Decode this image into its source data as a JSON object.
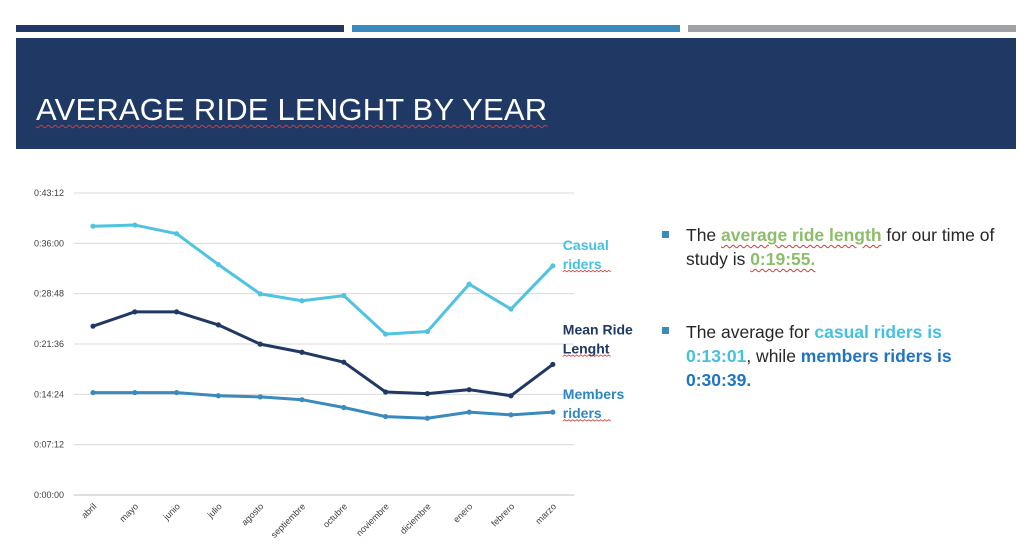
{
  "slide": {
    "title": "AVERAGE RIDE LENGHT BY YEAR",
    "accent_colors": {
      "dark_navy": "#1f3864",
      "blue": "#3a8bbd",
      "gray": "#a0a3a6"
    }
  },
  "bullets": [
    {
      "parts": [
        {
          "text": "The ",
          "style": "plain"
        },
        {
          "text": "average ride length",
          "style": "green"
        },
        {
          "text": " for our time of study is ",
          "style": "plain"
        },
        {
          "text": "0:19:55.",
          "style": "green"
        }
      ]
    },
    {
      "parts": [
        {
          "text": "The average for ",
          "style": "plain"
        },
        {
          "text": "casual riders is 0:13:01",
          "style": "cyan"
        },
        {
          "text": ", while ",
          "style": "plain"
        },
        {
          "text": "members riders is 0:30:39.",
          "style": "blue"
        }
      ]
    }
  ],
  "chart_data": {
    "type": "line",
    "categories": [
      "abril",
      "mayo",
      "junio",
      "julio",
      "agosto",
      "septiembre",
      "octubre",
      "noviembre",
      "diciembre",
      "enero",
      "febrero",
      "marzo"
    ],
    "y_tick_labels": [
      "0:00:00",
      "0:07:12",
      "0:14:24",
      "0:21:36",
      "0:28:48",
      "0:36:00",
      "0:43:12"
    ],
    "y_unit": "seconds",
    "ylim": [
      0,
      2592
    ],
    "grid": true,
    "legend": "inline labels at right end of lines",
    "series": [
      {
        "name": "Casual riders",
        "color": "#4fc3df",
        "values": [
          2307,
          2317,
          2243,
          1978,
          1726,
          1667,
          1711,
          1381,
          1403,
          1810,
          1596,
          1967
        ]
      },
      {
        "name": "Mean Ride Lenght",
        "color": "#1f3864",
        "values": [
          1449,
          1572,
          1572,
          1460,
          1295,
          1225,
          1140,
          884,
          870,
          904,
          852,
          1121
        ]
      },
      {
        "name": "Members riders",
        "color": "#3a8bbd",
        "values": [
          879,
          879,
          879,
          852,
          842,
          818,
          751,
          673,
          659,
          711,
          688,
          711
        ]
      }
    ],
    "series_labels": [
      {
        "lines": [
          "Casual",
          "riders"
        ],
        "color": "#45c1e0"
      },
      {
        "lines": [
          "Mean Ride",
          "Lenght"
        ],
        "color": "#1f3864"
      },
      {
        "lines": [
          "Members",
          "riders"
        ],
        "color": "#2e86c1"
      }
    ]
  }
}
